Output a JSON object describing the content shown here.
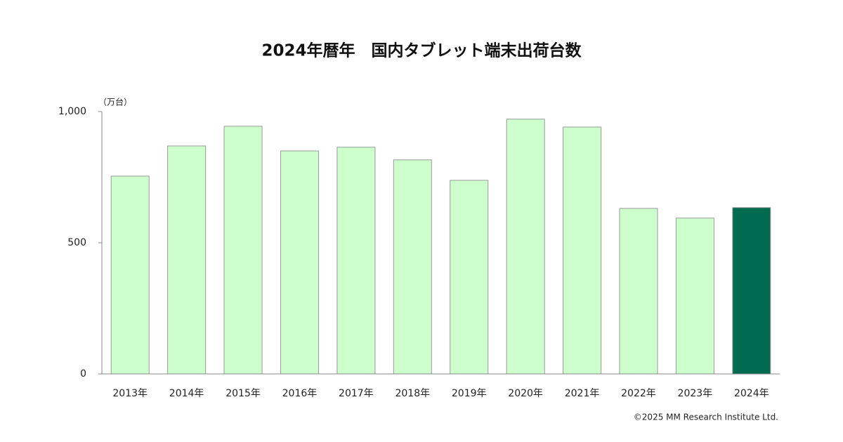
{
  "chart_data": {
    "type": "bar",
    "title": "2024年暦年　国内タブレット端末出荷台数",
    "y_label": "（万台）",
    "categories": [
      "2013年",
      "2014年",
      "2015年",
      "2016年",
      "2017年",
      "2018年",
      "2019年",
      "2020年",
      "2021年",
      "2022年",
      "2023年",
      "2024年"
    ],
    "values": [
      754,
      869,
      944,
      850,
      864,
      816,
      738,
      971,
      941,
      631,
      594,
      634
    ],
    "colors": [
      "#ccffcc",
      "#ccffcc",
      "#ccffcc",
      "#ccffcc",
      "#ccffcc",
      "#ccffcc",
      "#ccffcc",
      "#ccffcc",
      "#ccffcc",
      "#ccffcc",
      "#ccffcc",
      "#006b4f"
    ],
    "ylim": [
      0,
      1000
    ],
    "yticks": [
      0,
      500,
      {
        "value": 1000,
        "label": "1,000"
      }
    ],
    "grid": false,
    "source": "©2025  MM Research Institute Ltd."
  }
}
